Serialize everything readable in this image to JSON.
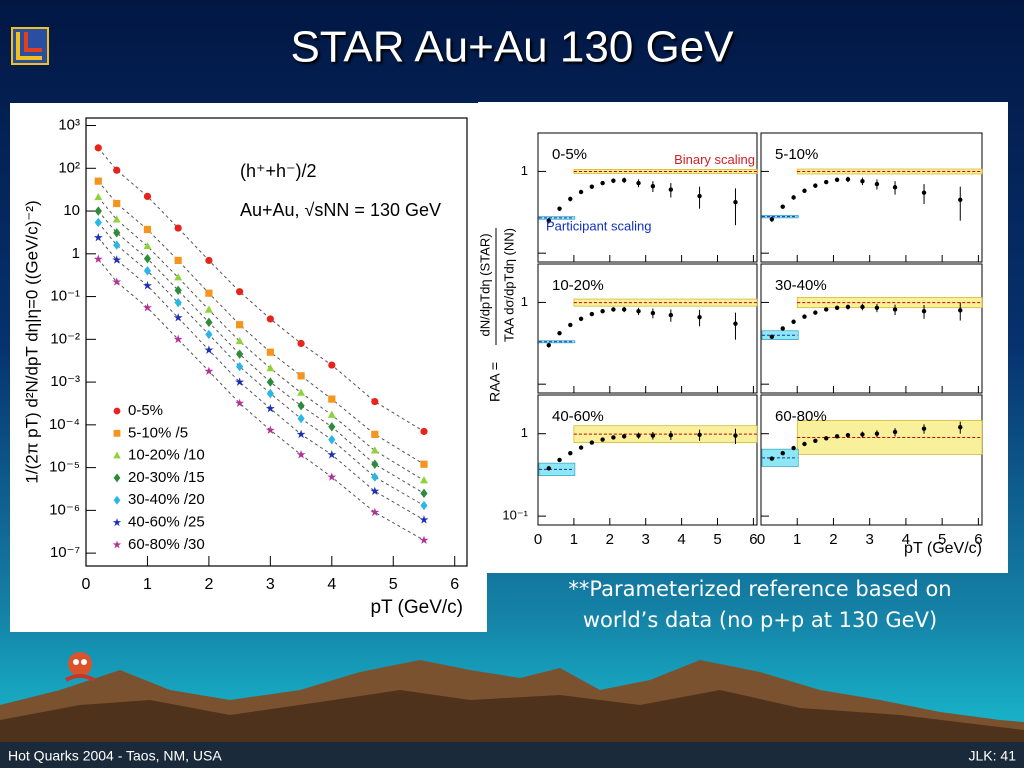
{
  "title": "STAR Au+Au 130 GeV",
  "caption": [
    "**Parameterized reference based on",
    "world’s data (no p+p at 130 GeV)"
  ],
  "footer": {
    "left": "Hot Quarks 2004 - Taos, NM, USA",
    "right": "JLK: 41"
  },
  "chart_data": [
    {
      "type": "scatter",
      "annotations": [
        "(h⁺+h⁻)/2",
        "Au+Au, √sNN = 130 GeV"
      ],
      "ylabel": "1/(2π pT) d²N/dpT dη|η=0 ((GeV/c)⁻²)",
      "xlabel": "pT (GeV/c)",
      "log_y": true,
      "xlim": [
        0,
        6.2
      ],
      "ylim": [
        5e-08,
        1500
      ],
      "xticks": [
        0,
        1,
        2,
        3,
        4,
        5,
        6
      ],
      "yticks": [
        {
          "value": 1e-07,
          "label": "10⁻⁷"
        },
        {
          "value": 1e-06,
          "label": "10⁻⁶"
        },
        {
          "value": 1e-05,
          "label": "10⁻⁵"
        },
        {
          "value": 0.0001,
          "label": "10⁻⁴"
        },
        {
          "value": 0.001,
          "label": "10⁻³"
        },
        {
          "value": 0.01,
          "label": "10⁻²"
        },
        {
          "value": 0.1,
          "label": "10⁻¹"
        },
        1,
        10,
        {
          "value": 100,
          "label": "10²"
        },
        {
          "value": 1000,
          "label": "10³"
        }
      ],
      "legend": "lower left",
      "x": [
        0.2,
        0.5,
        1,
        1.5,
        2,
        2.5,
        3,
        3.5,
        4,
        4.7,
        5.5
      ],
      "series": [
        {
          "name": "0-5%",
          "color": "#e8231c",
          "marker": "circle",
          "values": [
            300,
            90,
            22,
            4,
            0.7,
            0.13,
            0.03,
            0.008,
            0.0025,
            0.00035,
            7e-05
          ]
        },
        {
          "name": "5-10% /5",
          "color": "#f7941d",
          "marker": "square",
          "values": [
            50,
            15,
            3.7,
            0.7,
            0.12,
            0.022,
            0.005,
            0.0014,
            0.0004,
            6e-05,
            1.2e-05
          ]
        },
        {
          "name": "10-20% /10",
          "color": "#8fd33a",
          "marker": "triangle",
          "values": [
            21,
            6.3,
            1.5,
            0.28,
            0.049,
            0.009,
            0.0021,
            0.00056,
            0.00017,
            2.5e-05,
            5e-06
          ]
        },
        {
          "name": "20-30% /15",
          "color": "#2e8b3a",
          "marker": "diamond",
          "values": [
            10,
            3.1,
            0.77,
            0.14,
            0.025,
            0.0045,
            0.001,
            0.00028,
            9e-05,
            1.2e-05,
            2.5e-06
          ]
        },
        {
          "name": "30-40% /20",
          "color": "#29b6e8",
          "marker": "diamond",
          "values": [
            5.4,
            1.6,
            0.4,
            0.072,
            0.013,
            0.0023,
            0.00054,
            0.00014,
            4.5e-05,
            6e-06,
            1.3e-06
          ]
        },
        {
          "name": "40-60% /25",
          "color": "#1c2fb8",
          "marker": "star",
          "values": [
            2.4,
            0.72,
            0.18,
            0.032,
            0.0056,
            0.001,
            0.00024,
            6e-05,
            2e-05,
            2.8e-06,
            6e-07
          ]
        },
        {
          "name": "60-80% /30",
          "color": "#b5309a",
          "marker": "star",
          "values": [
            0.75,
            0.22,
            0.055,
            0.01,
            0.0018,
            0.00032,
            7.5e-05,
            2e-05,
            6e-06,
            9e-07,
            2e-07
          ]
        }
      ]
    },
    {
      "type": "panels",
      "ylabel": [
        "RAA =",
        "dN/dpTdη (STAR)",
        "TAA dσ/dpTdη (NN)"
      ],
      "xlabel": "pT (GeV/c)",
      "band_labels": [
        "Binary scaling",
        "Participant scaling"
      ],
      "log_y": true,
      "xlim": [
        0,
        6.1
      ],
      "ylim": [
        0.078,
        2.95
      ],
      "xticks": [
        0,
        1,
        2,
        3,
        4,
        5,
        6
      ],
      "yticks": [
        {
          "value": 0.1,
          "label": "10⁻¹"
        },
        1
      ],
      "band_split": 1,
      "x": [
        0.3,
        0.6,
        0.9,
        1.2,
        1.5,
        1.8,
        2.1,
        2.4,
        2.8,
        3.2,
        3.7,
        4.5,
        5.5
      ],
      "errors": [
        0.02,
        0.02,
        0.03,
        0.03,
        0.04,
        0.04,
        0.05,
        0.06,
        0.08,
        0.1,
        0.12,
        0.15,
        0.2
      ],
      "panels": [
        {
          "name": "0-5%",
          "binary": [
            0.94,
            1.06
          ],
          "participant": [
            0.26,
            0.28
          ],
          "values": [
            0.25,
            0.35,
            0.46,
            0.56,
            0.65,
            0.72,
            0.77,
            0.78,
            0.72,
            0.66,
            0.6,
            0.5,
            0.42
          ]
        },
        {
          "name": "5-10%",
          "binary": [
            0.93,
            1.07
          ],
          "participant": [
            0.27,
            0.29
          ],
          "values": [
            0.26,
            0.37,
            0.48,
            0.58,
            0.67,
            0.74,
            0.79,
            0.8,
            0.76,
            0.7,
            0.64,
            0.55,
            0.45
          ]
        },
        {
          "name": "10-20%",
          "binary": [
            0.9,
            1.1
          ],
          "participant": [
            0.32,
            0.34
          ],
          "values": [
            0.3,
            0.42,
            0.53,
            0.63,
            0.72,
            0.78,
            0.82,
            0.82,
            0.78,
            0.74,
            0.7,
            0.66,
            0.55
          ]
        },
        {
          "name": "30-40%",
          "binary": [
            0.86,
            1.15
          ],
          "participant": [
            0.35,
            0.45
          ],
          "values": [
            0.38,
            0.48,
            0.58,
            0.67,
            0.75,
            0.82,
            0.86,
            0.88,
            0.88,
            0.86,
            0.82,
            0.78,
            0.8
          ]
        },
        {
          "name": "40-60%",
          "binary": [
            0.78,
            1.25
          ],
          "participant": [
            0.31,
            0.44
          ],
          "values": [
            0.38,
            0.48,
            0.58,
            0.68,
            0.78,
            0.85,
            0.9,
            0.93,
            0.95,
            0.95,
            0.96,
            0.97,
            0.95
          ]
        },
        {
          "name": "60-80%",
          "binary": [
            0.56,
            1.45
          ],
          "participant": [
            0.4,
            0.65
          ],
          "values": [
            0.5,
            0.58,
            0.67,
            0.75,
            0.82,
            0.88,
            0.93,
            0.96,
            0.98,
            1.0,
            1.05,
            1.15,
            1.2
          ]
        }
      ]
    }
  ]
}
